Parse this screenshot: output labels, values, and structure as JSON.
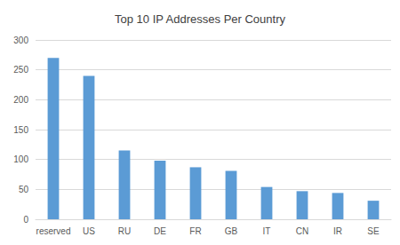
{
  "chart_data": {
    "type": "bar",
    "title": "Top 10 IP Addresses Per Country",
    "categories": [
      "reserved",
      "US",
      "RU",
      "DE",
      "FR",
      "GB",
      "IT",
      "CN",
      "IR",
      "SE"
    ],
    "values": [
      270,
      240,
      115,
      98,
      87,
      81,
      54,
      47,
      44,
      31
    ],
    "color": "#5b9bd5",
    "ylim": [
      0,
      300
    ],
    "yticks": [
      0,
      50,
      100,
      150,
      200,
      250,
      300
    ],
    "grid": true
  }
}
